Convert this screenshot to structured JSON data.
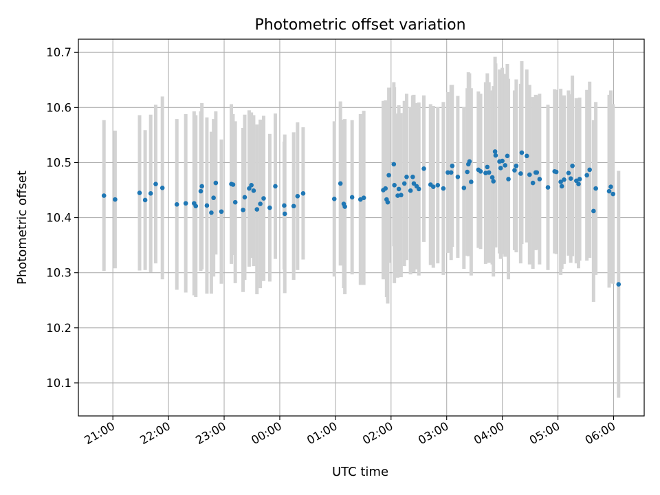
{
  "chart_data": {
    "type": "scatter",
    "title": "Photometric offset variation",
    "xlabel": "UTC time",
    "ylabel": "Photometric offset",
    "x_unit": "hours (UTC, continuing past midnight)",
    "xlim": [
      20.38,
      30.55
    ],
    "ylim": [
      10.04,
      10.724
    ],
    "grid": true,
    "legend": "none",
    "x_ticks": [
      {
        "value": 21,
        "label": "21:00"
      },
      {
        "value": 22,
        "label": "22:00"
      },
      {
        "value": 23,
        "label": "23:00"
      },
      {
        "value": 24,
        "label": "00:00"
      },
      {
        "value": 25,
        "label": "01:00"
      },
      {
        "value": 26,
        "label": "02:00"
      },
      {
        "value": 27,
        "label": "03:00"
      },
      {
        "value": 28,
        "label": "04:00"
      },
      {
        "value": 29,
        "label": "05:00"
      },
      {
        "value": 30,
        "label": "06:00"
      }
    ],
    "y_ticks": [
      {
        "value": 10.1,
        "label": "10.1"
      },
      {
        "value": 10.2,
        "label": "10.2"
      },
      {
        "value": 10.3,
        "label": "10.3"
      },
      {
        "value": 10.4,
        "label": "10.4"
      },
      {
        "value": 10.5,
        "label": "10.5"
      },
      {
        "value": 10.6,
        "label": "10.6"
      },
      {
        "value": 10.7,
        "label": "10.7"
      }
    ],
    "colors": {
      "point": "#1f77b4",
      "errorbar": "#d3d3d3",
      "grid": "#b0b0b0"
    },
    "series": [
      {
        "points": [
          [
            20.84,
            10.44,
            0.137
          ],
          [
            21.04,
            10.433,
            0.125
          ],
          [
            21.48,
            10.445,
            0.141
          ],
          [
            21.58,
            10.432,
            0.127
          ],
          [
            21.68,
            10.444,
            0.143
          ],
          [
            21.77,
            10.461,
            0.144
          ],
          [
            21.89,
            10.454,
            0.166
          ],
          [
            22.15,
            10.424,
            0.155
          ],
          [
            22.31,
            10.426,
            0.162
          ],
          [
            22.46,
            10.426,
            0.167
          ],
          [
            22.49,
            10.421,
            0.165
          ],
          [
            22.58,
            10.448,
            0.145
          ],
          [
            22.6,
            10.457,
            0.151
          ],
          [
            22.69,
            10.422,
            0.16
          ],
          [
            22.77,
            10.409,
            0.147
          ],
          [
            22.81,
            10.436,
            0.143
          ],
          [
            22.85,
            10.463,
            0.13
          ],
          [
            22.95,
            10.411,
            0.131
          ],
          [
            23.13,
            10.461,
            0.145
          ],
          [
            23.16,
            10.46,
            0.128
          ],
          [
            23.2,
            10.428,
            0.147
          ],
          [
            23.34,
            10.414,
            0.149
          ],
          [
            23.37,
            10.437,
            0.15
          ],
          [
            23.45,
            10.453,
            0.142
          ],
          [
            23.49,
            10.459,
            0.132
          ],
          [
            23.53,
            10.449,
            0.137
          ],
          [
            23.59,
            10.415,
            0.154
          ],
          [
            23.65,
            10.425,
            0.153
          ],
          [
            23.71,
            10.435,
            0.15
          ],
          [
            23.82,
            10.418,
            0.134
          ],
          [
            23.92,
            10.457,
            0.132
          ],
          [
            24.08,
            10.422,
            0.116
          ],
          [
            24.09,
            10.407,
            0.144
          ],
          [
            24.25,
            10.421,
            0.134
          ],
          [
            24.32,
            10.439,
            0.134
          ],
          [
            24.42,
            10.444,
            0.12
          ],
          [
            24.98,
            10.434,
            0.141
          ],
          [
            25.09,
            10.462,
            0.149
          ],
          [
            25.15,
            10.425,
            0.153
          ],
          [
            25.17,
            10.42,
            0.159
          ],
          [
            25.3,
            10.437,
            0.14
          ],
          [
            25.45,
            10.433,
            0.155
          ],
          [
            25.51,
            10.436,
            0.158
          ],
          [
            25.86,
            10.45,
            0.162
          ],
          [
            25.9,
            10.453,
            0.16
          ],
          [
            25.92,
            10.433,
            0.177
          ],
          [
            25.94,
            10.428,
            0.184
          ],
          [
            25.96,
            10.477,
            0.159
          ],
          [
            26.05,
            10.497,
            0.149
          ],
          [
            26.06,
            10.459,
            0.178
          ],
          [
            26.12,
            10.44,
            0.149
          ],
          [
            26.14,
            10.452,
            0.152
          ],
          [
            26.18,
            10.441,
            0.149
          ],
          [
            26.24,
            10.462,
            0.15
          ],
          [
            26.28,
            10.474,
            0.151
          ],
          [
            26.35,
            10.449,
            0.152
          ],
          [
            26.39,
            10.474,
            0.148
          ],
          [
            26.41,
            10.462,
            0.161
          ],
          [
            26.46,
            10.457,
            0.151
          ],
          [
            26.5,
            10.452,
            0.157
          ],
          [
            26.59,
            10.489,
            0.133
          ],
          [
            26.71,
            10.46,
            0.146
          ],
          [
            26.76,
            10.456,
            0.147
          ],
          [
            26.84,
            10.459,
            0.142
          ],
          [
            26.94,
            10.453,
            0.157
          ],
          [
            27.02,
            10.482,
            0.146
          ],
          [
            27.08,
            10.482,
            0.159
          ],
          [
            27.1,
            10.494,
            0.147
          ],
          [
            27.2,
            10.474,
            0.147
          ],
          [
            27.31,
            10.454,
            0.147
          ],
          [
            27.37,
            10.483,
            0.152
          ],
          [
            27.39,
            10.497,
            0.167
          ],
          [
            27.41,
            10.502,
            0.16
          ],
          [
            27.44,
            10.465,
            0.17
          ],
          [
            27.57,
            10.487,
            0.142
          ],
          [
            27.61,
            10.484,
            0.141
          ],
          [
            27.7,
            10.481,
            0.165
          ],
          [
            27.73,
            10.492,
            0.17
          ],
          [
            27.76,
            10.482,
            0.164
          ],
          [
            27.82,
            10.473,
            0.158
          ],
          [
            27.84,
            10.466,
            0.173
          ],
          [
            27.87,
            10.52,
            0.172
          ],
          [
            27.88,
            10.513,
            0.167
          ],
          [
            27.95,
            10.502,
            0.167
          ],
          [
            27.97,
            10.49,
            0.165
          ],
          [
            28.0,
            10.503,
            0.169
          ],
          [
            28.05,
            10.495,
            0.166
          ],
          [
            28.09,
            10.512,
            0.167
          ],
          [
            28.11,
            10.47,
            0.182
          ],
          [
            28.22,
            10.486,
            0.145
          ],
          [
            28.25,
            10.494,
            0.157
          ],
          [
            28.33,
            10.48,
            0.163
          ],
          [
            28.35,
            10.518,
            0.166
          ],
          [
            28.44,
            10.512,
            0.157
          ],
          [
            28.49,
            10.478,
            0.163
          ],
          [
            28.55,
            10.463,
            0.156
          ],
          [
            28.6,
            10.482,
            0.141
          ],
          [
            28.62,
            10.482,
            0.14
          ],
          [
            28.67,
            10.47,
            0.155
          ],
          [
            28.82,
            10.455,
            0.15
          ],
          [
            28.94,
            10.484,
            0.149
          ],
          [
            28.97,
            10.483,
            0.149
          ],
          [
            29.05,
            10.465,
            0.169
          ],
          [
            29.07,
            10.457,
            0.15
          ],
          [
            29.11,
            10.469,
            0.153
          ],
          [
            29.19,
            10.481,
            0.15
          ],
          [
            29.23,
            10.471,
            0.153
          ],
          [
            29.26,
            10.494,
            0.164
          ],
          [
            29.33,
            10.467,
            0.15
          ],
          [
            29.37,
            10.461,
            0.153
          ],
          [
            29.39,
            10.47,
            0.148
          ],
          [
            29.52,
            10.477,
            0.155
          ],
          [
            29.57,
            10.487,
            0.16
          ],
          [
            29.64,
            10.412,
            0.165
          ],
          [
            29.68,
            10.453,
            0.157
          ],
          [
            29.92,
            10.448,
            0.175
          ],
          [
            29.95,
            10.456,
            0.175
          ],
          [
            29.99,
            10.443,
            0.163
          ],
          [
            30.09,
            10.279,
            0.206
          ]
        ]
      }
    ]
  }
}
